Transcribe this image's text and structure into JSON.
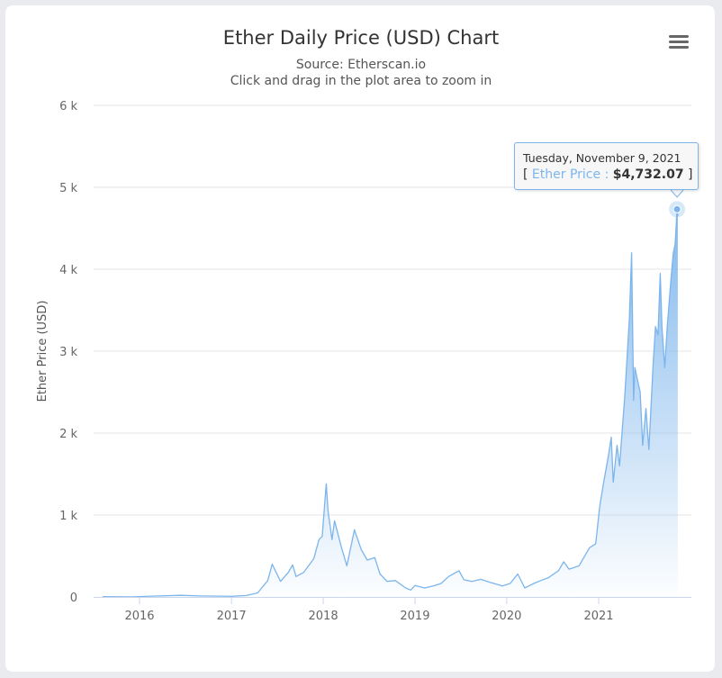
{
  "chart_data": {
    "type": "area",
    "title": "Ether Daily Price (USD) Chart",
    "subtitle": [
      "Source: Etherscan.io",
      "Click and drag in the plot area to zoom in"
    ],
    "xlabel": "",
    "ylabel": "Ether Price (USD)",
    "ylim": [
      0,
      6000
    ],
    "yticks": [
      "0",
      "1 k",
      "2 k",
      "3 k",
      "4 k",
      "5 k",
      "6 k"
    ],
    "xticks": [
      "2016",
      "2017",
      "2018",
      "2019",
      "2020",
      "2021"
    ],
    "grid": true,
    "color": "#7cb5ec",
    "series": [
      {
        "name": "Ether Price",
        "points": [
          [
            "2015-08-07",
            3
          ],
          [
            "2015-12-01",
            1
          ],
          [
            "2016-03-01",
            11
          ],
          [
            "2016-06-15",
            20
          ],
          [
            "2016-09-01",
            12
          ],
          [
            "2017-01-01",
            8
          ],
          [
            "2017-03-01",
            18
          ],
          [
            "2017-04-15",
            50
          ],
          [
            "2017-05-25",
            200
          ],
          [
            "2017-06-12",
            400
          ],
          [
            "2017-07-15",
            190
          ],
          [
            "2017-08-15",
            300
          ],
          [
            "2017-09-01",
            390
          ],
          [
            "2017-09-15",
            250
          ],
          [
            "2017-10-15",
            300
          ],
          [
            "2017-11-25",
            470
          ],
          [
            "2017-12-15",
            700
          ],
          [
            "2017-12-28",
            740
          ],
          [
            "2018-01-13",
            1380
          ],
          [
            "2018-01-20",
            1050
          ],
          [
            "2018-02-05",
            700
          ],
          [
            "2018-02-15",
            930
          ],
          [
            "2018-03-15",
            600
          ],
          [
            "2018-04-05",
            380
          ],
          [
            "2018-05-05",
            820
          ],
          [
            "2018-06-01",
            580
          ],
          [
            "2018-06-25",
            450
          ],
          [
            "2018-07-25",
            480
          ],
          [
            "2018-08-15",
            280
          ],
          [
            "2018-09-12",
            190
          ],
          [
            "2018-10-15",
            200
          ],
          [
            "2018-11-25",
            110
          ],
          [
            "2018-12-15",
            85
          ],
          [
            "2019-01-01",
            140
          ],
          [
            "2019-02-08",
            110
          ],
          [
            "2019-03-15",
            135
          ],
          [
            "2019-04-15",
            165
          ],
          [
            "2019-05-15",
            250
          ],
          [
            "2019-06-25",
            320
          ],
          [
            "2019-07-15",
            210
          ],
          [
            "2019-08-15",
            190
          ],
          [
            "2019-09-20",
            215
          ],
          [
            "2019-10-25",
            180
          ],
          [
            "2019-12-15",
            135
          ],
          [
            "2020-01-15",
            165
          ],
          [
            "2020-02-14",
            280
          ],
          [
            "2020-03-13",
            110
          ],
          [
            "2020-04-15",
            160
          ],
          [
            "2020-05-15",
            200
          ],
          [
            "2020-06-15",
            235
          ],
          [
            "2020-07-25",
            320
          ],
          [
            "2020-08-15",
            430
          ],
          [
            "2020-09-05",
            340
          ],
          [
            "2020-10-15",
            380
          ],
          [
            "2020-11-25",
            600
          ],
          [
            "2020-12-20",
            650
          ],
          [
            "2021-01-05",
            1100
          ],
          [
            "2021-01-20",
            1380
          ],
          [
            "2021-02-10",
            1750
          ],
          [
            "2021-02-20",
            1950
          ],
          [
            "2021-02-28",
            1400
          ],
          [
            "2021-03-15",
            1850
          ],
          [
            "2021-03-25",
            1600
          ],
          [
            "2021-04-15",
            2450
          ],
          [
            "2021-05-03",
            3400
          ],
          [
            "2021-05-12",
            4200
          ],
          [
            "2021-05-20",
            2400
          ],
          [
            "2021-05-25",
            2800
          ],
          [
            "2021-06-15",
            2500
          ],
          [
            "2021-06-25",
            1850
          ],
          [
            "2021-07-08",
            2300
          ],
          [
            "2021-07-20",
            1800
          ],
          [
            "2021-08-05",
            2800
          ],
          [
            "2021-08-15",
            3300
          ],
          [
            "2021-08-25",
            3200
          ],
          [
            "2021-09-03",
            3950
          ],
          [
            "2021-09-10",
            3300
          ],
          [
            "2021-09-21",
            2800
          ],
          [
            "2021-10-01",
            3300
          ],
          [
            "2021-10-15",
            3850
          ],
          [
            "2021-10-25",
            4200
          ],
          [
            "2021-11-01",
            4300
          ],
          [
            "2021-11-09",
            4732.07
          ],
          [
            "2021-11-12",
            4650
          ]
        ]
      }
    ],
    "tooltip": {
      "date": "Tuesday, November 9, 2021",
      "open": "[",
      "series": "Ether Price",
      "sep": ":",
      "value": "$4,732.07",
      "close": "]",
      "point": [
        "2021-11-09",
        4732.07
      ]
    }
  },
  "menu_icon": "hamburger-menu-icon"
}
